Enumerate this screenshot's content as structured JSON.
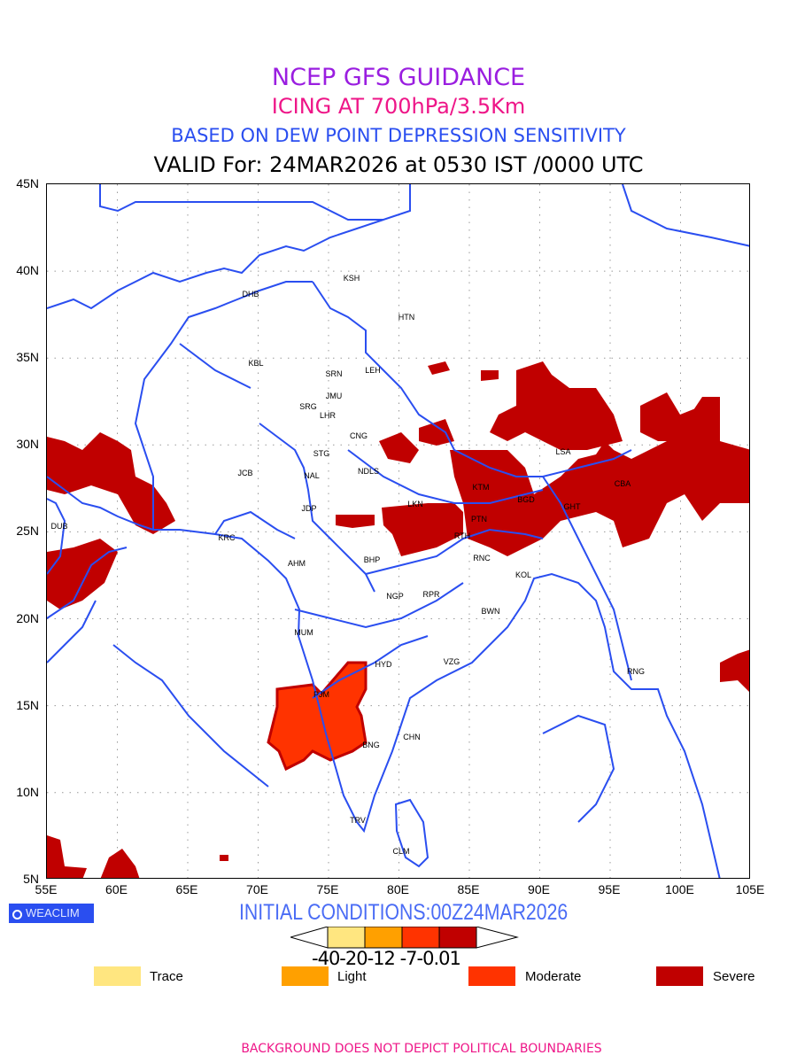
{
  "header": {
    "title": "NCEP GFS GUIDANCE",
    "subtitle": "ICING AT 700hPa/3.5Km",
    "method": "BASED ON DEW POINT DEPRESSION SENSITIVITY",
    "valid": "VALID For: 24MAR2026 at 0530 IST /0000 UTC"
  },
  "map": {
    "lon_labels": [
      "55E",
      "60E",
      "65E",
      "70E",
      "75E",
      "80E",
      "85E",
      "90E",
      "95E",
      "100E",
      "105E"
    ],
    "lat_labels": [
      "45N",
      "40N",
      "35N",
      "30N",
      "25N",
      "20N",
      "15N",
      "10N",
      "5N"
    ],
    "stations": [
      "DHB",
      "KSH",
      "HTN",
      "KBL",
      "SRN",
      "LEH",
      "JMU",
      "SRG",
      "LHR",
      "CNG",
      "STG",
      "NDLS",
      "JCB",
      "NAL",
      "JDP",
      "KRC",
      "LKN",
      "KTM",
      "BGD",
      "LSA",
      "CBA",
      "GHT",
      "PTN",
      "RTH",
      "RNC",
      "KOL",
      "BHP",
      "AHM",
      "NGP",
      "RPR",
      "BWN",
      "MUM",
      "HYD",
      "VZG",
      "RNG",
      "PJM",
      "BNG",
      "CHN",
      "TRV",
      "CLM",
      "DUB"
    ],
    "colors": {
      "coast": "#2a4ef0",
      "severe": "#c00000",
      "moderate": "#ff3300",
      "light": "#ffa000",
      "trace": "#ffe680"
    }
  },
  "logo": "WEACLIM",
  "initial_conditions": "INITIAL CONDITIONS:00Z24MAR2026",
  "colorbar": {
    "labels": "-40-20-12 -7-0.01",
    "values": [
      -40,
      -20,
      -12,
      -7,
      -0.01
    ]
  },
  "legend": [
    {
      "label": "Trace",
      "color": "#ffe680"
    },
    {
      "label": "Light",
      "color": "#ffa000"
    },
    {
      "label": "Moderate",
      "color": "#ff3300"
    },
    {
      "label": "Severe",
      "color": "#c00000"
    }
  ],
  "footer": "BACKGROUND DOES NOT DEPICT POLITICAL BOUNDARIES"
}
